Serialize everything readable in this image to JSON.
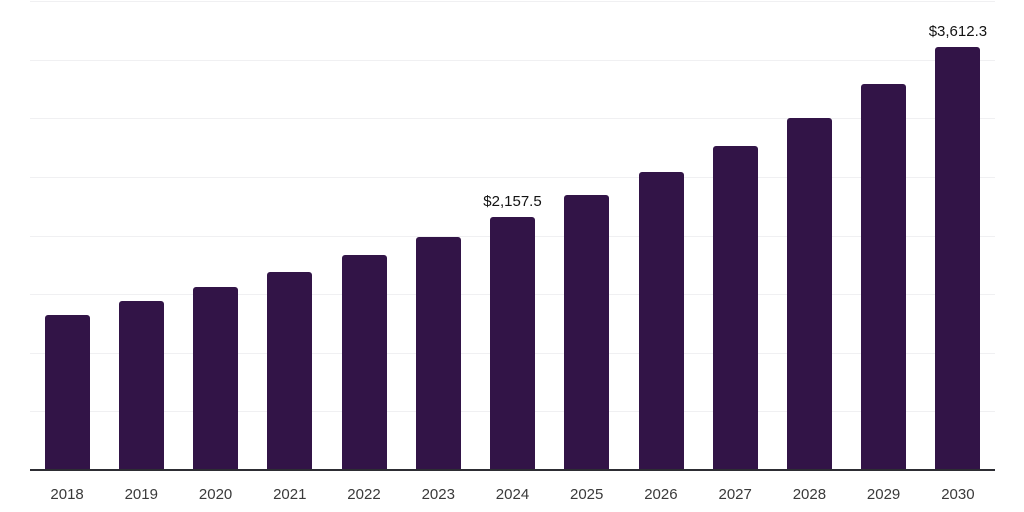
{
  "chart_data": {
    "type": "bar",
    "title": "",
    "xlabel": "",
    "ylabel": "",
    "categories": [
      "2018",
      "2019",
      "2020",
      "2021",
      "2022",
      "2023",
      "2024",
      "2025",
      "2026",
      "2027",
      "2028",
      "2029",
      "2030"
    ],
    "values": [
      1320,
      1440,
      1560,
      1685,
      1830,
      1985,
      2157.5,
      2345,
      2540,
      2765,
      3000,
      3295,
      3612.3
    ],
    "value_labels": {
      "2024": "$2,157.5",
      "2030": "$3,612.3"
    },
    "ylim": [
      0,
      4000
    ],
    "grid_step": 500,
    "grid": "horizontal-only",
    "legend": "none",
    "y_tick_labels": "none",
    "bar_color": "#321447",
    "axis_color": "#2d2d33",
    "grid_color": "#f0f0f2",
    "tick_label_color": "#3a3a3a",
    "data_label_color": "#131313",
    "background_color": "#ffffff"
  }
}
